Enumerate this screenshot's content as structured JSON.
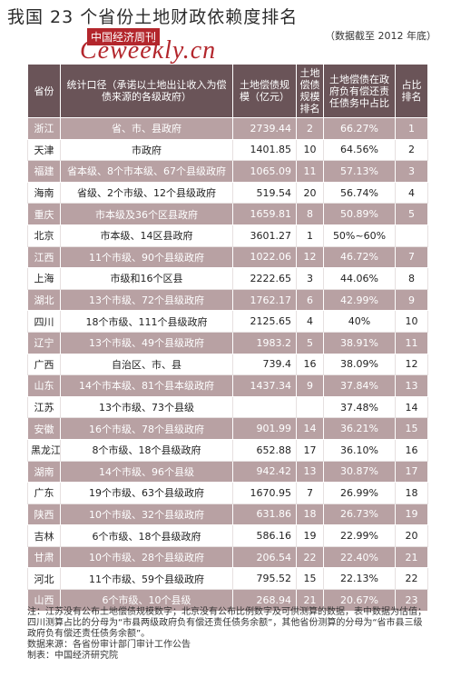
{
  "header": {
    "title": "我国 23 个省份土地财政依赖度排名",
    "subtitle": "（数据截至 2012 年底）",
    "brand": "中国经济周刊",
    "logo": "Ceweekly.cn"
  },
  "table": {
    "columns": [
      "省份",
      "统计口径（承诺以土地出让收入为偿债来源的各级政府）",
      "土地偿债规模（亿元）",
      "土地偿债规模排名",
      "土地偿债在政府负有偿还责任债务中占比",
      "占比排名"
    ],
    "rows": [
      {
        "province": "浙江",
        "scope": "省、市、县政府",
        "amount": "2739.44",
        "amount_rank": "2",
        "share": "66.27%",
        "share_rank": "1"
      },
      {
        "province": "天津",
        "scope": "市政府",
        "amount": "1401.85",
        "amount_rank": "10",
        "share": "64.56%",
        "share_rank": "2"
      },
      {
        "province": "福建",
        "scope": "省本级、8个市本级、67个县级政府",
        "amount": "1065.09",
        "amount_rank": "11",
        "share": "57.13%",
        "share_rank": "3"
      },
      {
        "province": "海南",
        "scope": "省级、2个市级、12个县级政府",
        "amount": "519.54",
        "amount_rank": "20",
        "share": "56.74%",
        "share_rank": "4"
      },
      {
        "province": "重庆",
        "scope": "市本级及36个区县政府",
        "amount": "1659.81",
        "amount_rank": "8",
        "share": "50.89%",
        "share_rank": "5"
      },
      {
        "province": "北京",
        "scope": "市本级、14区县政府",
        "amount": "3601.27",
        "amount_rank": "1",
        "share": "50%~60%",
        "share_rank": ""
      },
      {
        "province": "江西",
        "scope": "11个市级、90个县级政府",
        "amount": "1022.06",
        "amount_rank": "12",
        "share": "46.72%",
        "share_rank": "7"
      },
      {
        "province": "上海",
        "scope": "市级和16个区县",
        "amount": "2222.65",
        "amount_rank": "3",
        "share": "44.06%",
        "share_rank": "8"
      },
      {
        "province": "湖北",
        "scope": "13个市级、72个县级政府",
        "amount": "1762.17",
        "amount_rank": "6",
        "share": "42.99%",
        "share_rank": "9"
      },
      {
        "province": "四川",
        "scope": "18个市级、111个县级政府",
        "amount": "2125.65",
        "amount_rank": "4",
        "share": "40%",
        "share_rank": "10"
      },
      {
        "province": "辽宁",
        "scope": "13个市级、49个县级政府",
        "amount": "1983.2",
        "amount_rank": "5",
        "share": "38.91%",
        "share_rank": "11"
      },
      {
        "province": "广西",
        "scope": "自治区、市、县",
        "amount": "739.4",
        "amount_rank": "16",
        "share": "38.09%",
        "share_rank": "12"
      },
      {
        "province": "山东",
        "scope": "14个市本级、81个县本级政府",
        "amount": "1437.34",
        "amount_rank": "9",
        "share": "37.84%",
        "share_rank": "13"
      },
      {
        "province": "江苏",
        "scope": "13个市级、73个县级",
        "amount": "",
        "amount_rank": "",
        "share": "37.48%",
        "share_rank": "14"
      },
      {
        "province": "安徽",
        "scope": "16个市级、78个县级政府",
        "amount": "901.99",
        "amount_rank": "14",
        "share": "36.21%",
        "share_rank": "15"
      },
      {
        "province": "黑龙江",
        "scope": "8个市级、18个县级政府",
        "amount": "652.88",
        "amount_rank": "17",
        "share": "36.10%",
        "share_rank": "16"
      },
      {
        "province": "湖南",
        "scope": "14个市级、96个县级",
        "amount": "942.42",
        "amount_rank": "13",
        "share": "30.87%",
        "share_rank": "17"
      },
      {
        "province": "广东",
        "scope": "19个市级、63个县级政府",
        "amount": "1670.95",
        "amount_rank": "7",
        "share": "26.99%",
        "share_rank": "18"
      },
      {
        "province": "陕西",
        "scope": "10个市级、32个县级政府",
        "amount": "631.86",
        "amount_rank": "18",
        "share": "26.73%",
        "share_rank": "19"
      },
      {
        "province": "吉林",
        "scope": "6个市级、18个县级政府",
        "amount": "586.16",
        "amount_rank": "19",
        "share": "22.99%",
        "share_rank": "20"
      },
      {
        "province": "甘肃",
        "scope": "10个市级、28个县级政府",
        "amount": "206.54",
        "amount_rank": "22",
        "share": "22.40%",
        "share_rank": "21"
      },
      {
        "province": "河北",
        "scope": "11个市级、59个县级政府",
        "amount": "795.52",
        "amount_rank": "15",
        "share": "22.13%",
        "share_rank": "22"
      },
      {
        "province": "山西",
        "scope": "6个市级、10个县级",
        "amount": "268.94",
        "amount_rank": "21",
        "share": "20.67%",
        "share_rank": "23"
      }
    ]
  },
  "notes": {
    "note": "注：江苏没有公布土地偿债规模数字；北京没有公布比例数字及可供测算的数据，表中数据为估值；四川测算占比的分母为“市县两级政府负有偿还责任债务余额”，其他省份测算的分母为“省市县三级政府负有偿还责任债务余额”。",
    "source": "数据来源：各省份审计部门审计工作公告",
    "producer": "制表：中国经济研究院"
  }
}
